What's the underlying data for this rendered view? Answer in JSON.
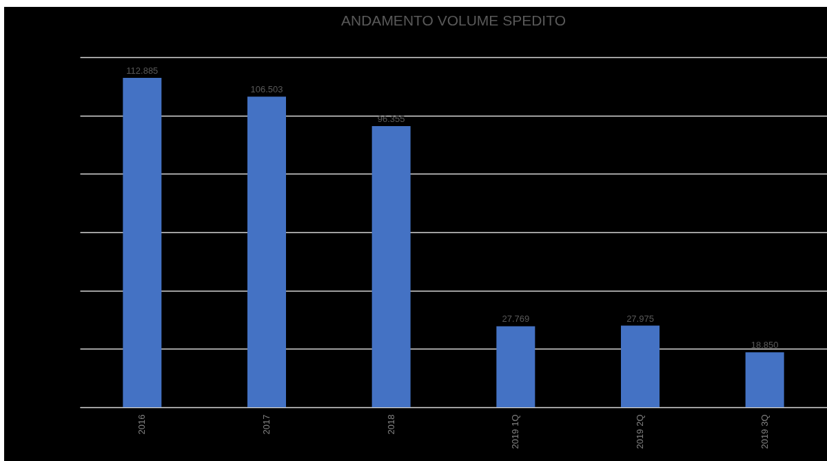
{
  "chart_data": {
    "type": "bar",
    "title": "ANDAMENTO VOLUME SPEDITO",
    "categories": [
      "2016",
      "2017",
      "2018",
      "2019 1Q",
      "2019 2Q",
      "2019 3Q"
    ],
    "values": [
      112885,
      106503,
      96355,
      27769,
      27975,
      18850
    ],
    "value_labels": [
      "112.885",
      "106.503",
      "96.355",
      "27.769",
      "27.975",
      "18.850"
    ],
    "color": "#4472c4",
    "ylim": [
      0,
      120000
    ],
    "yticks": [
      {
        "value": 0,
        "label": null
      },
      {
        "value": 20000,
        "label": null
      },
      {
        "value": 40000,
        "label": null
      },
      {
        "value": 60000,
        "label": null
      },
      {
        "value": 80000,
        "label": null
      },
      {
        "value": 100000,
        "label": null
      },
      {
        "value": 120000,
        "label": null
      }
    ],
    "grid": "y",
    "tick_labels": "x"
  }
}
